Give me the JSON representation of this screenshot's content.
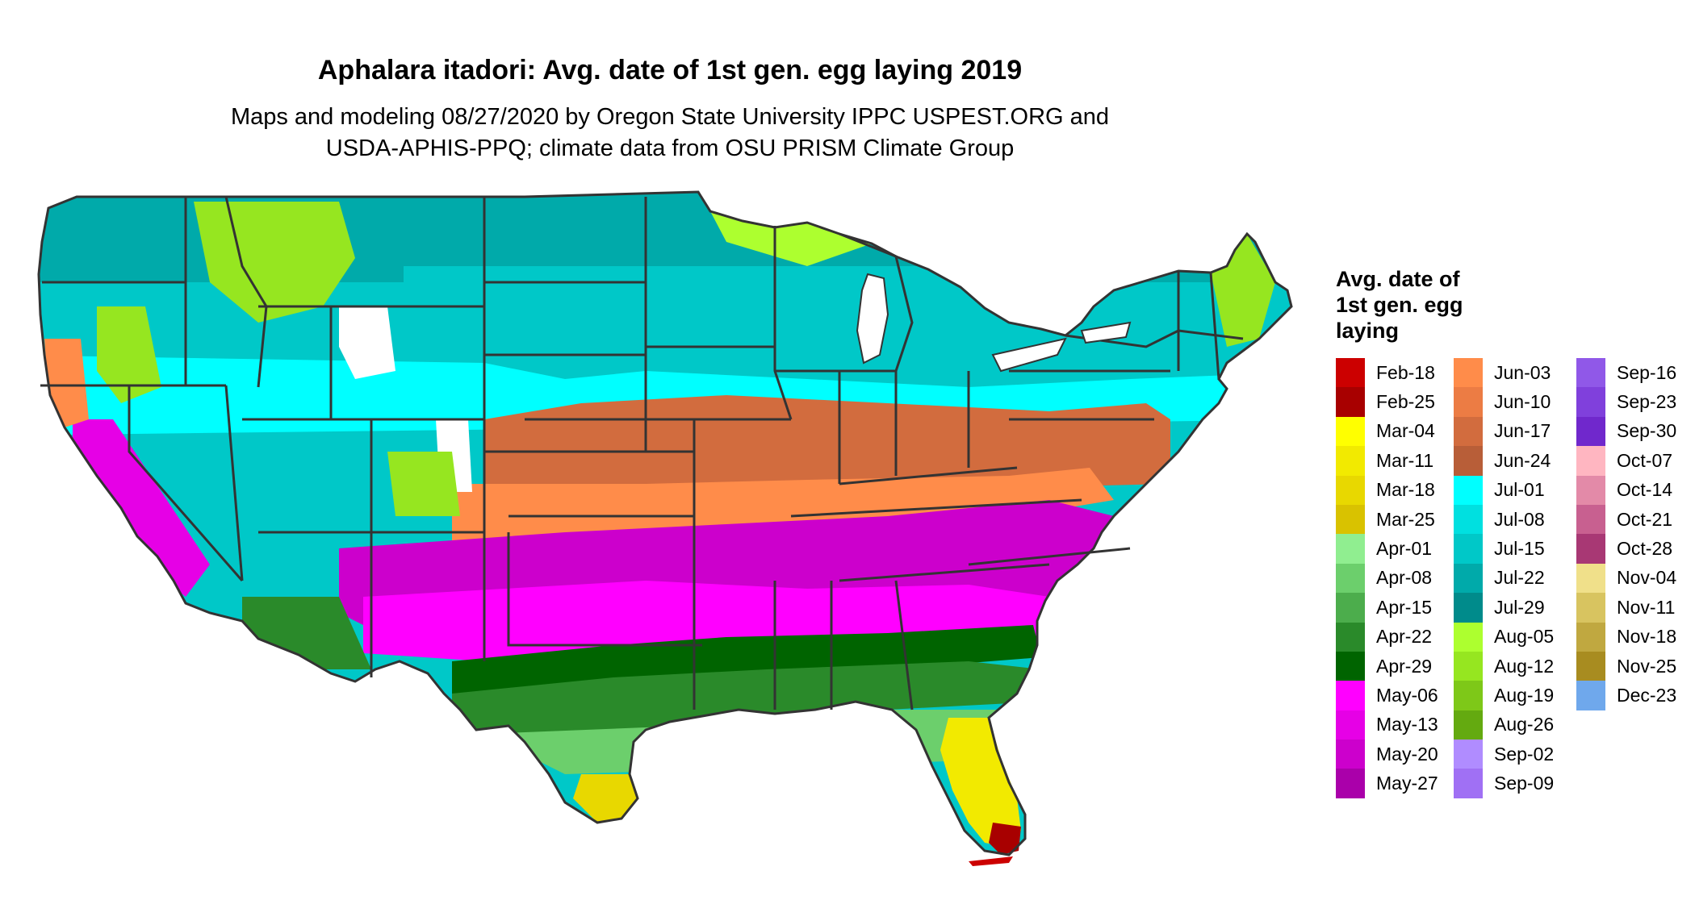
{
  "title": "Aphalara itadori: Avg. date of 1st gen. egg laying 2019",
  "subtitle_lines": [
    "Maps and modeling 08/27/2020 by Oregon State University IPPC USPEST.ORG and",
    "USDA-APHIS-PPQ; climate data from OSU PRISM Climate Group"
  ],
  "legend": {
    "title_lines": [
      "Avg. date of",
      "1st gen. egg",
      "laying"
    ],
    "columns": [
      [
        {
          "label": "Feb-18",
          "color": "#cc0000"
        },
        {
          "label": "Feb-25",
          "color": "#a80000"
        },
        {
          "label": "Mar-04",
          "color": "#ffff00"
        },
        {
          "label": "Mar-11",
          "color": "#f2ea00"
        },
        {
          "label": "Mar-18",
          "color": "#e8d800"
        },
        {
          "label": "Mar-25",
          "color": "#d9c200"
        },
        {
          "label": "Apr-01",
          "color": "#90ee90"
        },
        {
          "label": "Apr-08",
          "color": "#6ccf6c"
        },
        {
          "label": "Apr-15",
          "color": "#4cad4c"
        },
        {
          "label": "Apr-22",
          "color": "#2a8a2a"
        },
        {
          "label": "Apr-29",
          "color": "#006400"
        },
        {
          "label": "May-06",
          "color": "#ff00ff"
        },
        {
          "label": "May-13",
          "color": "#e600e6"
        },
        {
          "label": "May-20",
          "color": "#cc00cc"
        },
        {
          "label": "May-27",
          "color": "#aa00aa"
        }
      ],
      [
        {
          "label": "Jun-03",
          "color": "#ff8c4a"
        },
        {
          "label": "Jun-10",
          "color": "#ec7c44"
        },
        {
          "label": "Jun-17",
          "color": "#d26c3e"
        },
        {
          "label": "Jun-24",
          "color": "#b85e38"
        },
        {
          "label": "Jul-01",
          "color": "#00ffff"
        },
        {
          "label": "Jul-08",
          "color": "#00e0e0"
        },
        {
          "label": "Jul-15",
          "color": "#00c8c8"
        },
        {
          "label": "Jul-22",
          "color": "#00aaaa"
        },
        {
          "label": "Jul-29",
          "color": "#008b8b"
        },
        {
          "label": "Aug-05",
          "color": "#adff2f"
        },
        {
          "label": "Aug-12",
          "color": "#96e620"
        },
        {
          "label": "Aug-19",
          "color": "#7ec818"
        },
        {
          "label": "Aug-26",
          "color": "#64aa10"
        },
        {
          "label": "Sep-02",
          "color": "#b08cff"
        },
        {
          "label": "Sep-09",
          "color": "#a070f4"
        }
      ],
      [
        {
          "label": "Sep-16",
          "color": "#9058e8"
        },
        {
          "label": "Sep-23",
          "color": "#8040dc"
        },
        {
          "label": "Sep-30",
          "color": "#7028cc"
        },
        {
          "label": "Oct-07",
          "color": "#ffb6c1"
        },
        {
          "label": "Oct-14",
          "color": "#e38aa8"
        },
        {
          "label": "Oct-21",
          "color": "#c86090"
        },
        {
          "label": "Oct-28",
          "color": "#a83874"
        },
        {
          "label": "Nov-04",
          "color": "#f0e08a"
        },
        {
          "label": "Nov-11",
          "color": "#d8c460"
        },
        {
          "label": "Nov-18",
          "color": "#c0a840"
        },
        {
          "label": "Nov-25",
          "color": "#a88c20"
        },
        {
          "label": "Dec-23",
          "color": "#6fa8ec"
        }
      ]
    ]
  },
  "map_colors": {
    "background_land": "#00c8c8",
    "white_patches": "#ffffff",
    "border": "#333333"
  }
}
